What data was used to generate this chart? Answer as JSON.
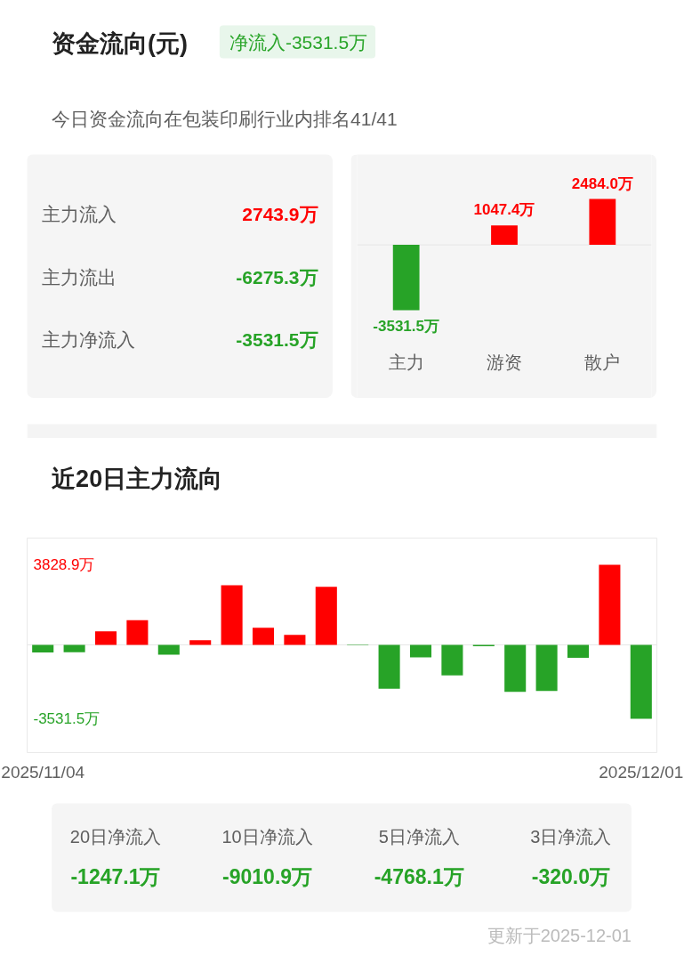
{
  "chart_data": [
    {
      "type": "other",
      "title": "资金流向(元)",
      "subtitle": "净流入-3531.5万",
      "annotations": [
        "今日资金流向在包装印刷行业内排名41/41"
      ],
      "categories": [
        "主力流入",
        "主力流出",
        "主力净流入"
      ],
      "values": [
        2743.9,
        -6275.3,
        -3531.5
      ],
      "value_labels": [
        "2743.9万",
        "-6275.3万",
        "-3531.5万"
      ]
    },
    {
      "type": "bar",
      "categories": [
        "主力",
        "游资",
        "散户"
      ],
      "values": [
        -3531.5,
        1047.4,
        2484.0
      ],
      "value_labels": [
        "-3531.5万",
        "1047.4万",
        "2484.0万"
      ],
      "colors": [
        "#27a327",
        "#ff0000",
        "#ff0000"
      ],
      "ref_lines": [
        {
          "axis": "y",
          "value": 0,
          "color": "#e6e6e6"
        }
      ]
    },
    {
      "type": "bar",
      "title": "近20日主力流向",
      "categories": [
        "2025/11/04",
        null,
        null,
        null,
        null,
        null,
        null,
        null,
        null,
        null,
        null,
        null,
        null,
        null,
        null,
        null,
        null,
        null,
        null,
        "2025/12/01"
      ],
      "values": [
        -360,
        -350,
        640,
        1180,
        -470,
        220,
        2850,
        820,
        480,
        2770,
        -20,
        -2100,
        -600,
        -1460,
        -70,
        -2250,
        -2200,
        -620,
        3828.9,
        -3531.5
      ],
      "colors": [
        "#27a327",
        "#27a327",
        "#ff0000",
        "#ff0000",
        "#27a327",
        "#ff0000",
        "#ff0000",
        "#ff0000",
        "#ff0000",
        "#ff0000",
        "#27a327",
        "#27a327",
        "#27a327",
        "#27a327",
        "#27a327",
        "#27a327",
        "#27a327",
        "#27a327",
        "#ff0000",
        "#27a327"
      ],
      "ylim": [
        -5150,
        5100
      ],
      "yticks": [
        {
          "value": 3828.9,
          "label": "3828.9万"
        },
        {
          "value": -3531.5,
          "label": "-3531.5万"
        }
      ],
      "ref_lines": [
        {
          "axis": "y",
          "value": 0,
          "color": "#e6e6e6"
        }
      ]
    },
    {
      "type": "other",
      "categories": [
        "20日净流入",
        "10日净流入",
        "5日净流入",
        "3日净流入"
      ],
      "values": [
        -1247.1,
        -9010.9,
        -4768.1,
        -320.0
      ],
      "value_labels": [
        "-1247.1万",
        "-9010.9万",
        "-4768.1万",
        "-320.0万"
      ],
      "annotations": [
        "更新于2025-12-01"
      ]
    }
  ]
}
